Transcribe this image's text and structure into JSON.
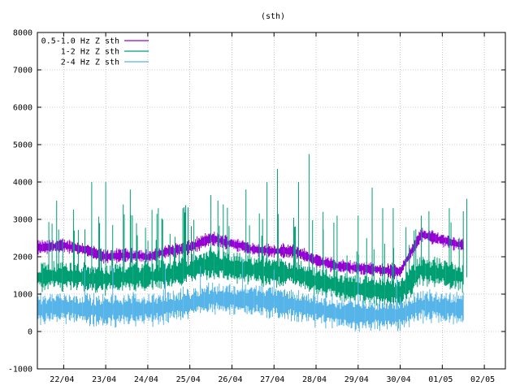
{
  "chart_data": {
    "type": "line",
    "title": "(sth)",
    "xlabel": "",
    "ylabel": "",
    "ylim": [
      -1000,
      8000
    ],
    "yticks": [
      -1000,
      0,
      1000,
      2000,
      3000,
      4000,
      5000,
      6000,
      7000,
      8000
    ],
    "xlim": [
      "2023-04-21T09:00",
      "2023-05-02T12:00"
    ],
    "xticks": [
      {
        "date": "2023-04-22",
        "label": "22/04"
      },
      {
        "date": "2023-04-23",
        "label": "23/04"
      },
      {
        "date": "2023-04-24",
        "label": "24/04"
      },
      {
        "date": "2023-04-25",
        "label": "25/04"
      },
      {
        "date": "2023-04-26",
        "label": "26/04"
      },
      {
        "date": "2023-04-27",
        "label": "27/04"
      },
      {
        "date": "2023-04-28",
        "label": "28/04"
      },
      {
        "date": "2023-04-29",
        "label": "29/04"
      },
      {
        "date": "2023-04-30",
        "label": "30/04"
      },
      {
        "date": "2023-05-01",
        "label": "01/05"
      },
      {
        "date": "2023-05-02",
        "label": "02/05"
      }
    ],
    "grid": true,
    "legend_position": "top-left",
    "series": [
      {
        "name": "0.5-1.0 Hz Z sth",
        "color": "#9400d3",
        "x": [
          "2023-04-21T09:00",
          "2023-04-22T00:00",
          "2023-04-22T12:00",
          "2023-04-23T00:00",
          "2023-04-23T12:00",
          "2023-04-24T00:00",
          "2023-04-24T12:00",
          "2023-04-25T00:00",
          "2023-04-25T12:00",
          "2023-04-26T00:00",
          "2023-04-26T12:00",
          "2023-04-27T00:00",
          "2023-04-27T12:00",
          "2023-04-28T00:00",
          "2023-04-28T12:00",
          "2023-04-29T00:00",
          "2023-04-29T12:00",
          "2023-04-30T00:00",
          "2023-04-30T12:00",
          "2023-05-01T00:00",
          "2023-05-01T12:00"
        ],
        "y": [
          2250,
          2300,
          2200,
          2000,
          2050,
          2000,
          2150,
          2250,
          2500,
          2350,
          2200,
          2150,
          2150,
          1900,
          1750,
          1700,
          1650,
          1600,
          2600,
          2450,
          2300
        ],
        "band": 220
      },
      {
        "name": "1-2 Hz Z sth",
        "color": "#009e73",
        "x": [
          "2023-04-21T09:00",
          "2023-04-22T00:00",
          "2023-04-22T12:00",
          "2023-04-23T00:00",
          "2023-04-23T12:00",
          "2023-04-24T00:00",
          "2023-04-24T12:00",
          "2023-04-25T00:00",
          "2023-04-25T12:00",
          "2023-04-26T00:00",
          "2023-04-26T12:00",
          "2023-04-27T00:00",
          "2023-04-27T12:00",
          "2023-04-28T00:00",
          "2023-04-28T12:00",
          "2023-04-29T00:00",
          "2023-04-29T12:00",
          "2023-04-30T00:00",
          "2023-04-30T12:00",
          "2023-05-01T00:00",
          "2023-05-01T12:00"
        ],
        "y": [
          1450,
          1500,
          1450,
          1400,
          1450,
          1500,
          1500,
          1650,
          1850,
          1700,
          1650,
          1600,
          1550,
          1350,
          1200,
          1150,
          1100,
          1050,
          1650,
          1550,
          1450
        ],
        "band": 450,
        "peaks": [
          {
            "x": "2023-04-21T20:00",
            "y": 3500
          },
          {
            "x": "2023-04-22T16:00",
            "y": 4000
          },
          {
            "x": "2023-04-23T00:00",
            "y": 4000
          },
          {
            "x": "2023-04-23T10:00",
            "y": 3400
          },
          {
            "x": "2023-04-23T14:00",
            "y": 3800
          },
          {
            "x": "2023-04-24T06:00",
            "y": 3300
          },
          {
            "x": "2023-04-24T20:00",
            "y": 3300
          },
          {
            "x": "2023-04-25T12:00",
            "y": 3650
          },
          {
            "x": "2023-04-25T16:00",
            "y": 3500
          },
          {
            "x": "2023-04-26T08:00",
            "y": 3800
          },
          {
            "x": "2023-04-26T20:00",
            "y": 4000
          },
          {
            "x": "2023-04-27T02:00",
            "y": 4350
          },
          {
            "x": "2023-04-27T14:00",
            "y": 4000
          },
          {
            "x": "2023-04-27T20:00",
            "y": 4750
          },
          {
            "x": "2023-04-28T04:00",
            "y": 3200
          },
          {
            "x": "2023-04-28T12:00",
            "y": 3100
          },
          {
            "x": "2023-04-29T00:00",
            "y": 3100
          },
          {
            "x": "2023-04-29T08:00",
            "y": 3850
          },
          {
            "x": "2023-04-29T14:00",
            "y": 3300
          },
          {
            "x": "2023-04-29T20:00",
            "y": 3300
          },
          {
            "x": "2023-04-30T12:00",
            "y": 3100
          },
          {
            "x": "2023-05-01T04:00",
            "y": 3300
          },
          {
            "x": "2023-05-01T14:00",
            "y": 3550
          }
        ]
      },
      {
        "name": "2-4 Hz Z sth",
        "color": "#56b4e9",
        "x": [
          "2023-04-21T09:00",
          "2023-04-22T00:00",
          "2023-04-22T12:00",
          "2023-04-23T00:00",
          "2023-04-23T12:00",
          "2023-04-24T00:00",
          "2023-04-24T12:00",
          "2023-04-25T00:00",
          "2023-04-25T12:00",
          "2023-04-26T00:00",
          "2023-04-26T12:00",
          "2023-04-27T00:00",
          "2023-04-27T12:00",
          "2023-04-28T00:00",
          "2023-04-28T12:00",
          "2023-04-29T00:00",
          "2023-04-29T12:00",
          "2023-04-30T00:00",
          "2023-04-30T12:00",
          "2023-05-01T00:00",
          "2023-05-01T12:00"
        ],
        "y": [
          600,
          650,
          600,
          550,
          600,
          600,
          650,
          750,
          900,
          850,
          850,
          800,
          700,
          600,
          500,
          450,
          450,
          450,
          700,
          650,
          600
        ],
        "band": 500,
        "peaks": [
          {
            "x": "2023-04-22T12:00",
            "y": 1700
          },
          {
            "x": "2023-04-23T04:00",
            "y": 1750
          },
          {
            "x": "2023-04-24T10:00",
            "y": 1800
          },
          {
            "x": "2023-04-25T06:00",
            "y": 1750
          },
          {
            "x": "2023-04-26T06:00",
            "y": 1950
          },
          {
            "x": "2023-04-27T00:00",
            "y": 1650
          },
          {
            "x": "2023-04-29T00:00",
            "y": 1650
          },
          {
            "x": "2023-04-29T22:00",
            "y": 1500
          }
        ]
      }
    ]
  }
}
